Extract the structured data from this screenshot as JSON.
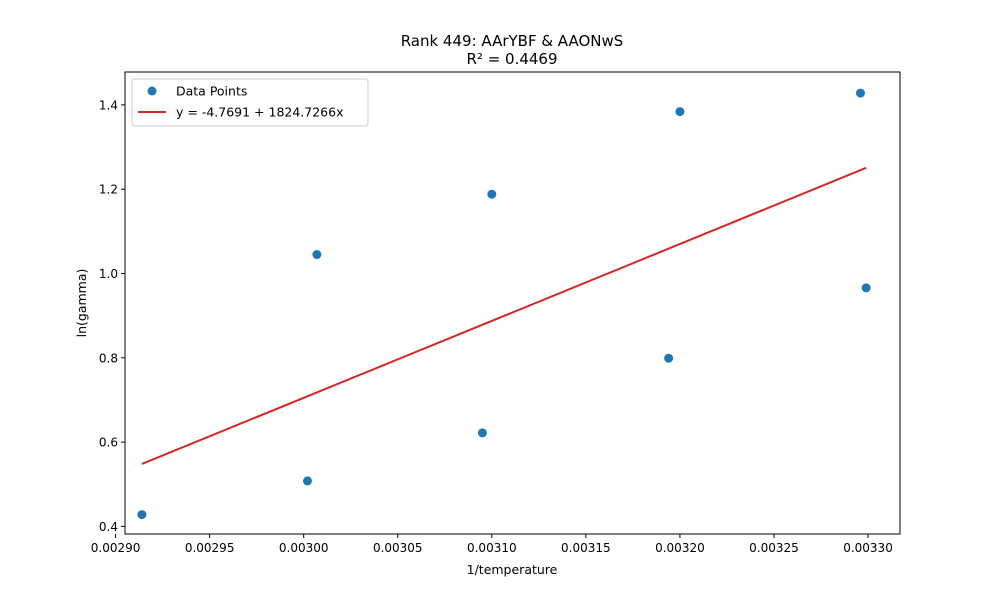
{
  "chart_data": {
    "type": "scatter",
    "title": "Rank 449: AArYBF & AAONwS",
    "subtitle": "R² = 0.4469",
    "xlabel": "1/temperature",
    "ylabel": "ln(gamma)",
    "xlim": [
      0.002905,
      0.003317
    ],
    "ylim": [
      0.382,
      1.478
    ],
    "xticks": [
      0.0029,
      0.00295,
      0.003,
      0.00305,
      0.0031,
      0.00315,
      0.0032,
      0.00325,
      0.0033
    ],
    "xtick_labels": [
      "0.00290",
      "0.00295",
      "0.00300",
      "0.00305",
      "0.00310",
      "0.00315",
      "0.00320",
      "0.00325",
      "0.00330"
    ],
    "yticks": [
      0.4,
      0.6,
      0.8,
      1.0,
      1.2,
      1.4
    ],
    "ytick_labels": [
      "0.4",
      "0.6",
      "0.8",
      "1.0",
      "1.2",
      "1.4"
    ],
    "grid": false,
    "legend_position": "top-left",
    "series": [
      {
        "name": "Data Points",
        "kind": "scatter",
        "color": "#1f77b4",
        "x": [
          0.002914,
          0.003002,
          0.003007,
          0.003095,
          0.0031,
          0.003194,
          0.0032,
          0.003296,
          0.003299
        ],
        "y": [
          0.428,
          0.508,
          1.045,
          0.622,
          1.188,
          0.799,
          1.384,
          1.428,
          0.966
        ]
      },
      {
        "name": "y = -4.7691 + 1824.7266x",
        "kind": "line",
        "color": "#d62728",
        "intercept": -4.7691,
        "slope": 1824.7266,
        "x_range": [
          0.002914,
          0.003299
        ]
      }
    ]
  }
}
